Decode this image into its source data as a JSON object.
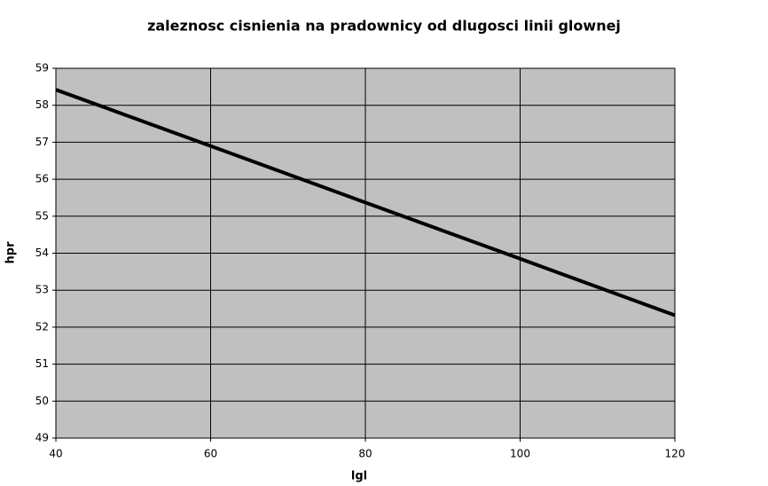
{
  "chart_data": {
    "type": "line",
    "title": "zaleznosc cisnienia na pradownicy od dlugosci linii glownej",
    "x_label": "lgl",
    "y_label": "hpr",
    "x": [
      40,
      60,
      80,
      100,
      120
    ],
    "series": [
      {
        "name": "hpr",
        "color": "#000000",
        "values": [
          58.42,
          56.9,
          55.37,
          53.85,
          52.32
        ]
      }
    ],
    "xlim": [
      40,
      120
    ],
    "xticks": [
      40,
      60,
      80,
      100,
      120
    ],
    "ylim": [
      49,
      59
    ],
    "yticks": [
      49,
      50,
      51,
      52,
      53,
      54,
      55,
      56,
      57,
      58,
      59
    ],
    "grid": true,
    "plot_background": "#c0c0c0"
  }
}
